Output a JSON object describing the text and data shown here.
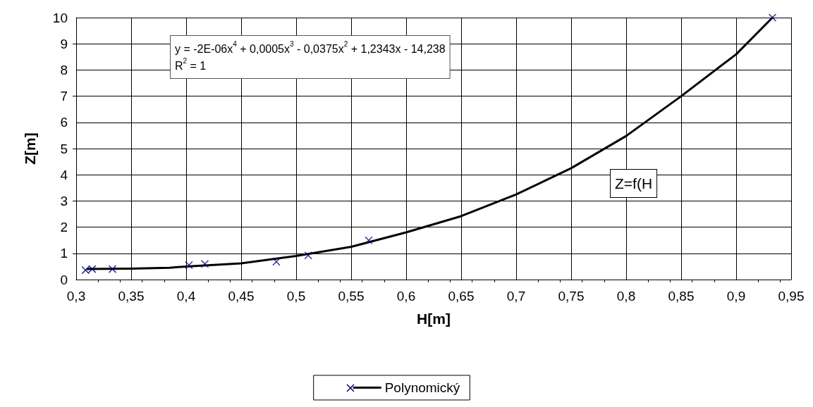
{
  "chart_data": {
    "type": "scatter",
    "xlabel": "H[m]",
    "ylabel": "Z[m]",
    "xlim": [
      0.3,
      0.95
    ],
    "xticks": [
      {
        "value": 0.3,
        "label": "0,3"
      },
      {
        "value": 0.35,
        "label": "0,35"
      },
      {
        "value": 0.4,
        "label": "0,4"
      },
      {
        "value": 0.45,
        "label": "0,45"
      },
      {
        "value": 0.5,
        "label": "0,5"
      },
      {
        "value": 0.55,
        "label": "0,55"
      },
      {
        "value": 0.6,
        "label": "0,6"
      },
      {
        "value": 0.65,
        "label": "0,65"
      },
      {
        "value": 0.7,
        "label": "0,7"
      },
      {
        "value": 0.75,
        "label": "0,75"
      },
      {
        "value": 0.8,
        "label": "0,8"
      },
      {
        "value": 0.85,
        "label": "0,85"
      },
      {
        "value": 0.9,
        "label": "0,9"
      },
      {
        "value": 0.95,
        "label": "0,95"
      }
    ],
    "ylim": [
      0,
      10
    ],
    "yticks": [
      0,
      1,
      2,
      3,
      4,
      5,
      6,
      7,
      8,
      9,
      10
    ],
    "grid": true,
    "legend": "bottom",
    "series": [
      {
        "marker": "cross",
        "color": "#000080",
        "x": [
          0.3085,
          0.3146,
          0.333,
          0.4025,
          0.417,
          0.482,
          0.511,
          0.566,
          0.933
        ],
        "values": [
          0.36,
          0.4,
          0.4,
          0.55,
          0.6,
          0.68,
          0.92,
          1.5,
          10
        ]
      },
      {
        "type": "line",
        "name": "Polynomický",
        "marker": "none",
        "line_style": "solid",
        "color": "#000000",
        "x": [
          0.31,
          0.35,
          0.385,
          0.4,
          0.45,
          0.5,
          0.55,
          0.6,
          0.65,
          0.7,
          0.75,
          0.8,
          0.85,
          0.9,
          0.933
        ],
        "values": [
          0.4,
          0.42,
          0.45,
          0.5,
          0.62,
          0.9,
          1.25,
          1.8,
          2.42,
          3.25,
          4.25,
          5.48,
          7.0,
          8.6,
          10
        ]
      }
    ],
    "annotations": [
      "y = -2E-06x$^{4}$ + 0,0005x$^{3}$ - 0,0375x$^{2}$ + 1,2343x - 14,238",
      "R$^{2}$ = 1",
      "Z=f(H"
    ]
  }
}
